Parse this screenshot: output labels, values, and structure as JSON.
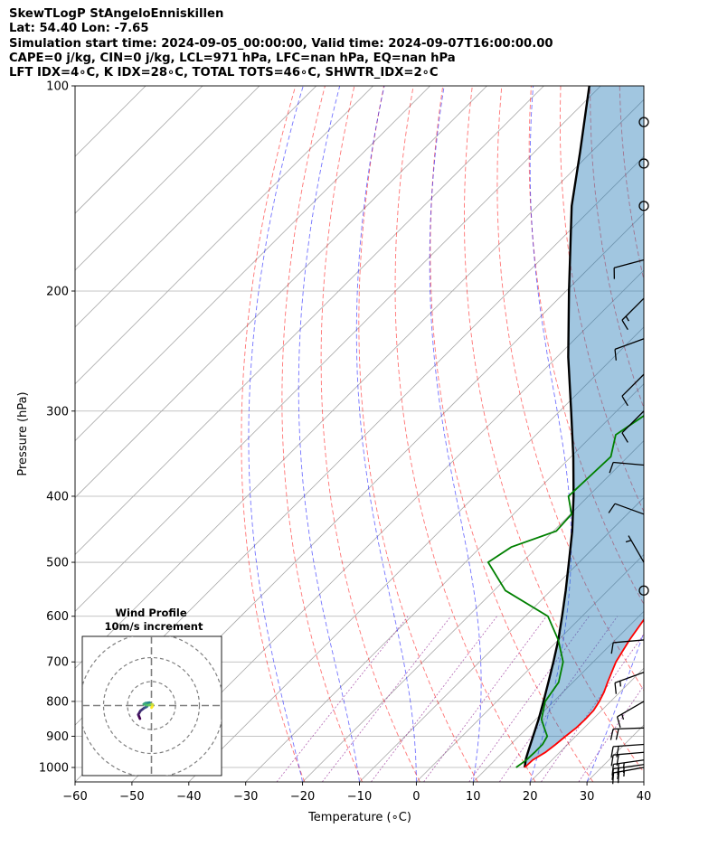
{
  "header": {
    "line1": "SkewTLogP StAngeloEnniskillen",
    "line2": "Lat: 54.40   Lon: -7.65",
    "line3": "Simulation start time: 2024-09-05_00:00:00, Valid time: 2024-09-07T16:00:00.00",
    "line4": "CAPE=0 j/kg, CIN=0 j/kg, LCL=971 hPa, LFC=nan hPa, EQ=nan hPa",
    "line5": "LFT IDX=4∘C, K IDX=28∘C, TOTAL TOTS=46∘C, SHWTR_IDX=2∘C"
  },
  "chart_data": {
    "type": "line",
    "xlabel": "Temperature (∘C)",
    "ylabel": "Pressure (hPa)",
    "xlim": [
      -60,
      40
    ],
    "ylim": [
      1050,
      100
    ],
    "y_scale": "log",
    "skew": "45 degrees",
    "x_ticks": [
      "−60",
      "−50",
      "−40",
      "−30",
      "−20",
      "−10",
      "0",
      "10",
      "20",
      "30",
      "40"
    ],
    "y_ticks": [
      "100",
      "200",
      "300",
      "400",
      "500",
      "600",
      "700",
      "800",
      "900",
      "1000"
    ],
    "isotherm_step": 10,
    "dry_adiabats_theta_K": [
      250,
      260,
      270,
      280,
      290,
      300,
      310,
      320,
      330,
      340,
      350,
      360,
      370,
      380,
      390
    ],
    "moist_adiabats_start_C": [
      -20,
      -10,
      0,
      10,
      20,
      30
    ],
    "mixing_ratio_lines_gkg": [
      0.5,
      1,
      2,
      4,
      7,
      10,
      16,
      24
    ],
    "series": [
      {
        "name": "Temperature",
        "color": "#ff0000",
        "points": [
          [
            1000,
            16.5
          ],
          [
            975,
            16.6
          ],
          [
            950,
            17.5
          ],
          [
            925,
            17.9
          ],
          [
            900,
            18.2
          ],
          [
            875,
            18.6
          ],
          [
            850,
            18.7
          ],
          [
            825,
            18.6
          ],
          [
            800,
            18.0
          ],
          [
            775,
            17.2
          ],
          [
            750,
            16.1
          ],
          [
            700,
            14.0
          ],
          [
            650,
            12.5
          ],
          [
            600,
            11.3
          ],
          [
            550,
            10.3
          ],
          [
            500,
            8.3
          ],
          [
            450,
            5.4
          ],
          [
            400,
            2.4
          ],
          [
            350,
            -1.7
          ],
          [
            325,
            -3.9
          ],
          [
            300,
            -6.9
          ],
          [
            275,
            -10.2
          ],
          [
            250,
            -14.8
          ],
          [
            225,
            -19.8
          ],
          [
            200,
            -25.3
          ],
          [
            175,
            -27.9
          ],
          [
            150,
            -24.5
          ],
          [
            140,
            -22.5
          ],
          [
            125,
            -19.0
          ],
          [
            110,
            -17.0
          ],
          [
            100,
            -14.7
          ]
        ]
      },
      {
        "name": "Dewpoint",
        "color": "#008000",
        "points": [
          [
            1000,
            15.0
          ],
          [
            975,
            15.5
          ],
          [
            950,
            15.6
          ],
          [
            925,
            15.6
          ],
          [
            900,
            15.0
          ],
          [
            875,
            13.0
          ],
          [
            850,
            11.0
          ],
          [
            800,
            8.5
          ],
          [
            750,
            7.5
          ],
          [
            700,
            4.7
          ],
          [
            650,
            0.0
          ],
          [
            600,
            -6.0
          ],
          [
            550,
            -18.0
          ],
          [
            500,
            -26.0
          ],
          [
            475,
            -24.6
          ],
          [
            450,
            -19.5
          ],
          [
            425,
            -19.8
          ],
          [
            400,
            -23.5
          ],
          [
            350,
            -23.0
          ],
          [
            325,
            -26.0
          ],
          [
            300,
            -24.0
          ],
          [
            275,
            -25.8
          ],
          [
            250,
            -29.0
          ],
          [
            225,
            -31.5
          ],
          [
            200,
            -35.5
          ],
          [
            175,
            -42.5
          ],
          [
            150,
            -50.0
          ],
          [
            140,
            -53.5
          ],
          [
            125,
            -54.0
          ],
          [
            110,
            -55.0
          ],
          [
            100,
            -55.9
          ]
        ]
      },
      {
        "name": "Parcel profile",
        "color": "#000000",
        "points": [
          [
            1000,
            16.5
          ],
          [
            971,
            15.2
          ],
          [
            950,
            14.4
          ],
          [
            900,
            12.5
          ],
          [
            850,
            10.5
          ],
          [
            800,
            8.2
          ],
          [
            750,
            5.7
          ],
          [
            700,
            3.0
          ],
          [
            650,
            0.0
          ],
          [
            600,
            -3.5
          ],
          [
            550,
            -7.4
          ],
          [
            500,
            -11.8
          ],
          [
            450,
            -16.7
          ],
          [
            400,
            -22.6
          ],
          [
            350,
            -29.6
          ],
          [
            300,
            -38.0
          ],
          [
            250,
            -48.0
          ],
          [
            200,
            -59.5
          ],
          [
            150,
            -74.0
          ],
          [
            125,
            -82.0
          ],
          [
            100,
            -92.0
          ]
        ]
      }
    ],
    "wind_barbs": [
      {
        "p": 1000,
        "speed_kt": 25,
        "dir_deg": 260
      },
      {
        "p": 990,
        "speed_kt": 25,
        "dir_deg": 262
      },
      {
        "p": 975,
        "speed_kt": 25,
        "dir_deg": 262
      },
      {
        "p": 950,
        "speed_kt": 20,
        "dir_deg": 265
      },
      {
        "p": 925,
        "speed_kt": 20,
        "dir_deg": 266
      },
      {
        "p": 875,
        "speed_kt": 20,
        "dir_deg": 268
      },
      {
        "p": 800,
        "speed_kt": 15,
        "dir_deg": 240
      },
      {
        "p": 725,
        "speed_kt": 15,
        "dir_deg": 250
      },
      {
        "p": 650,
        "speed_kt": 10,
        "dir_deg": 265
      },
      {
        "p": 550,
        "speed_kt": 0,
        "dir_deg": 0
      },
      {
        "p": 500,
        "speed_kt": 5,
        "dir_deg": 330
      },
      {
        "p": 425,
        "speed_kt": 10,
        "dir_deg": 290
      },
      {
        "p": 360,
        "speed_kt": 10,
        "dir_deg": 275
      },
      {
        "p": 300,
        "speed_kt": 10,
        "dir_deg": 225
      },
      {
        "p": 265,
        "speed_kt": 10,
        "dir_deg": 225
      },
      {
        "p": 235,
        "speed_kt": 10,
        "dir_deg": 250
      },
      {
        "p": 205,
        "speed_kt": 15,
        "dir_deg": 225
      },
      {
        "p": 180,
        "speed_kt": 10,
        "dir_deg": 255
      },
      {
        "p": 150,
        "speed_kt": 0,
        "dir_deg": 0
      },
      {
        "p": 130,
        "speed_kt": 0,
        "dir_deg": 0
      },
      {
        "p": 113,
        "speed_kt": 0,
        "dir_deg": 0
      }
    ],
    "hodograph": {
      "title": "Wind Profile",
      "subtitle": "10m/s increment",
      "rings_ms": [
        10,
        20,
        30
      ],
      "colormap": "viridis",
      "points": [
        [
          -4.8,
          -5.5
        ],
        [
          -5.5,
          -3.8
        ],
        [
          -4.6,
          -2.2
        ],
        [
          -3.0,
          -1.0
        ],
        [
          -2.0,
          -0.5
        ],
        [
          -1.5,
          0.3
        ],
        [
          -0.8,
          1.2
        ],
        [
          -2.5,
          1.0
        ],
        [
          -3.2,
          0.6
        ],
        [
          -2.2,
          0.2
        ],
        [
          -1.0,
          0.2
        ],
        [
          0.0,
          0.5
        ],
        [
          0.5,
          0.4
        ],
        [
          0.3,
          -0.5
        ],
        [
          0.0,
          -0.9
        ]
      ]
    }
  }
}
